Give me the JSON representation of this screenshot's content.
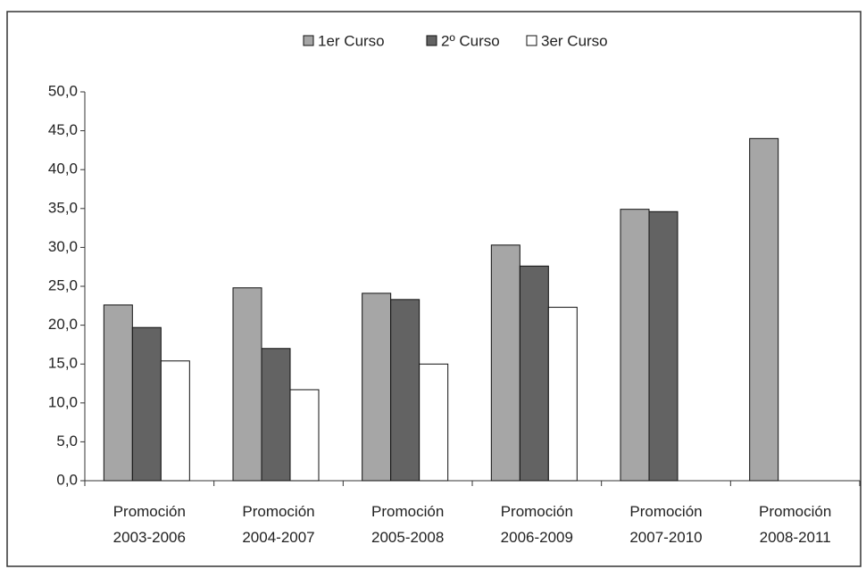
{
  "chart_data": {
    "type": "bar",
    "categories": [
      "Promoción\n2003-2006",
      "Promoción\n2004-2007",
      "Promoción\n2005-2008",
      "Promoción\n2006-2009",
      "Promoción\n2007-2010",
      "Promoción\n2008-2011"
    ],
    "series": [
      {
        "name": "1er Curso",
        "color": "#a6a6a6",
        "values": [
          22.6,
          24.8,
          24.1,
          30.3,
          34.9,
          44.0
        ]
      },
      {
        "name": "2º Curso",
        "color": "#636363",
        "values": [
          19.7,
          17.0,
          23.3,
          27.6,
          34.6,
          null
        ]
      },
      {
        "name": "3er Curso",
        "color": "#ffffff",
        "values": [
          15.4,
          11.7,
          15.0,
          22.3,
          null,
          null
        ]
      }
    ],
    "ylim": [
      0,
      50
    ],
    "yticks": [
      {
        "value": 0,
        "label": "0,0"
      },
      {
        "value": 5,
        "label": "5,0"
      },
      {
        "value": 10,
        "label": "10,0"
      },
      {
        "value": 15,
        "label": "15,0"
      },
      {
        "value": 20,
        "label": "20,0"
      },
      {
        "value": 25,
        "label": "25,0"
      },
      {
        "value": 30,
        "label": "30,0"
      },
      {
        "value": 35,
        "label": "35,0"
      },
      {
        "value": 40,
        "label": "40,0"
      },
      {
        "value": 45,
        "label": "45,0"
      },
      {
        "value": 50,
        "label": "50,0"
      }
    ],
    "grid": false,
    "legend": "top"
  }
}
